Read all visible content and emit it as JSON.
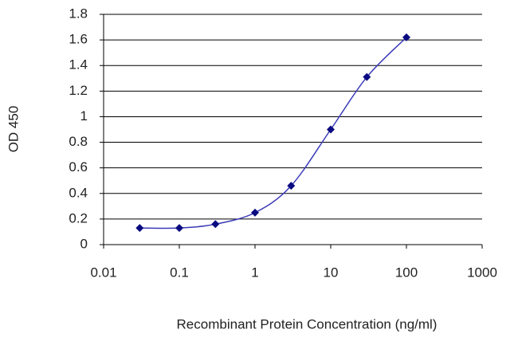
{
  "chart_data": {
    "type": "line",
    "log_x": true,
    "grid": true,
    "x_label": "Recombinant Protein Concentration (ng/ml)",
    "y_label": "OD 450",
    "x": [
      0.03,
      0.1,
      0.3,
      1,
      3,
      10,
      30,
      100
    ],
    "series": [
      {
        "color": "#3a3ab8",
        "marker_color": "#0a0a80",
        "values": [
          0.13,
          0.13,
          0.16,
          0.25,
          0.46,
          0.9,
          1.31,
          1.62
        ]
      }
    ],
    "xlim": [
      0.01,
      1000
    ],
    "xticks": [
      0.01,
      0.1,
      1,
      10,
      100,
      1000
    ],
    "ylim": [
      0,
      1.8
    ],
    "yticks": [
      0,
      0.2,
      0.4,
      0.6,
      0.8,
      1,
      1.2,
      1.4,
      1.6,
      1.8
    ]
  }
}
